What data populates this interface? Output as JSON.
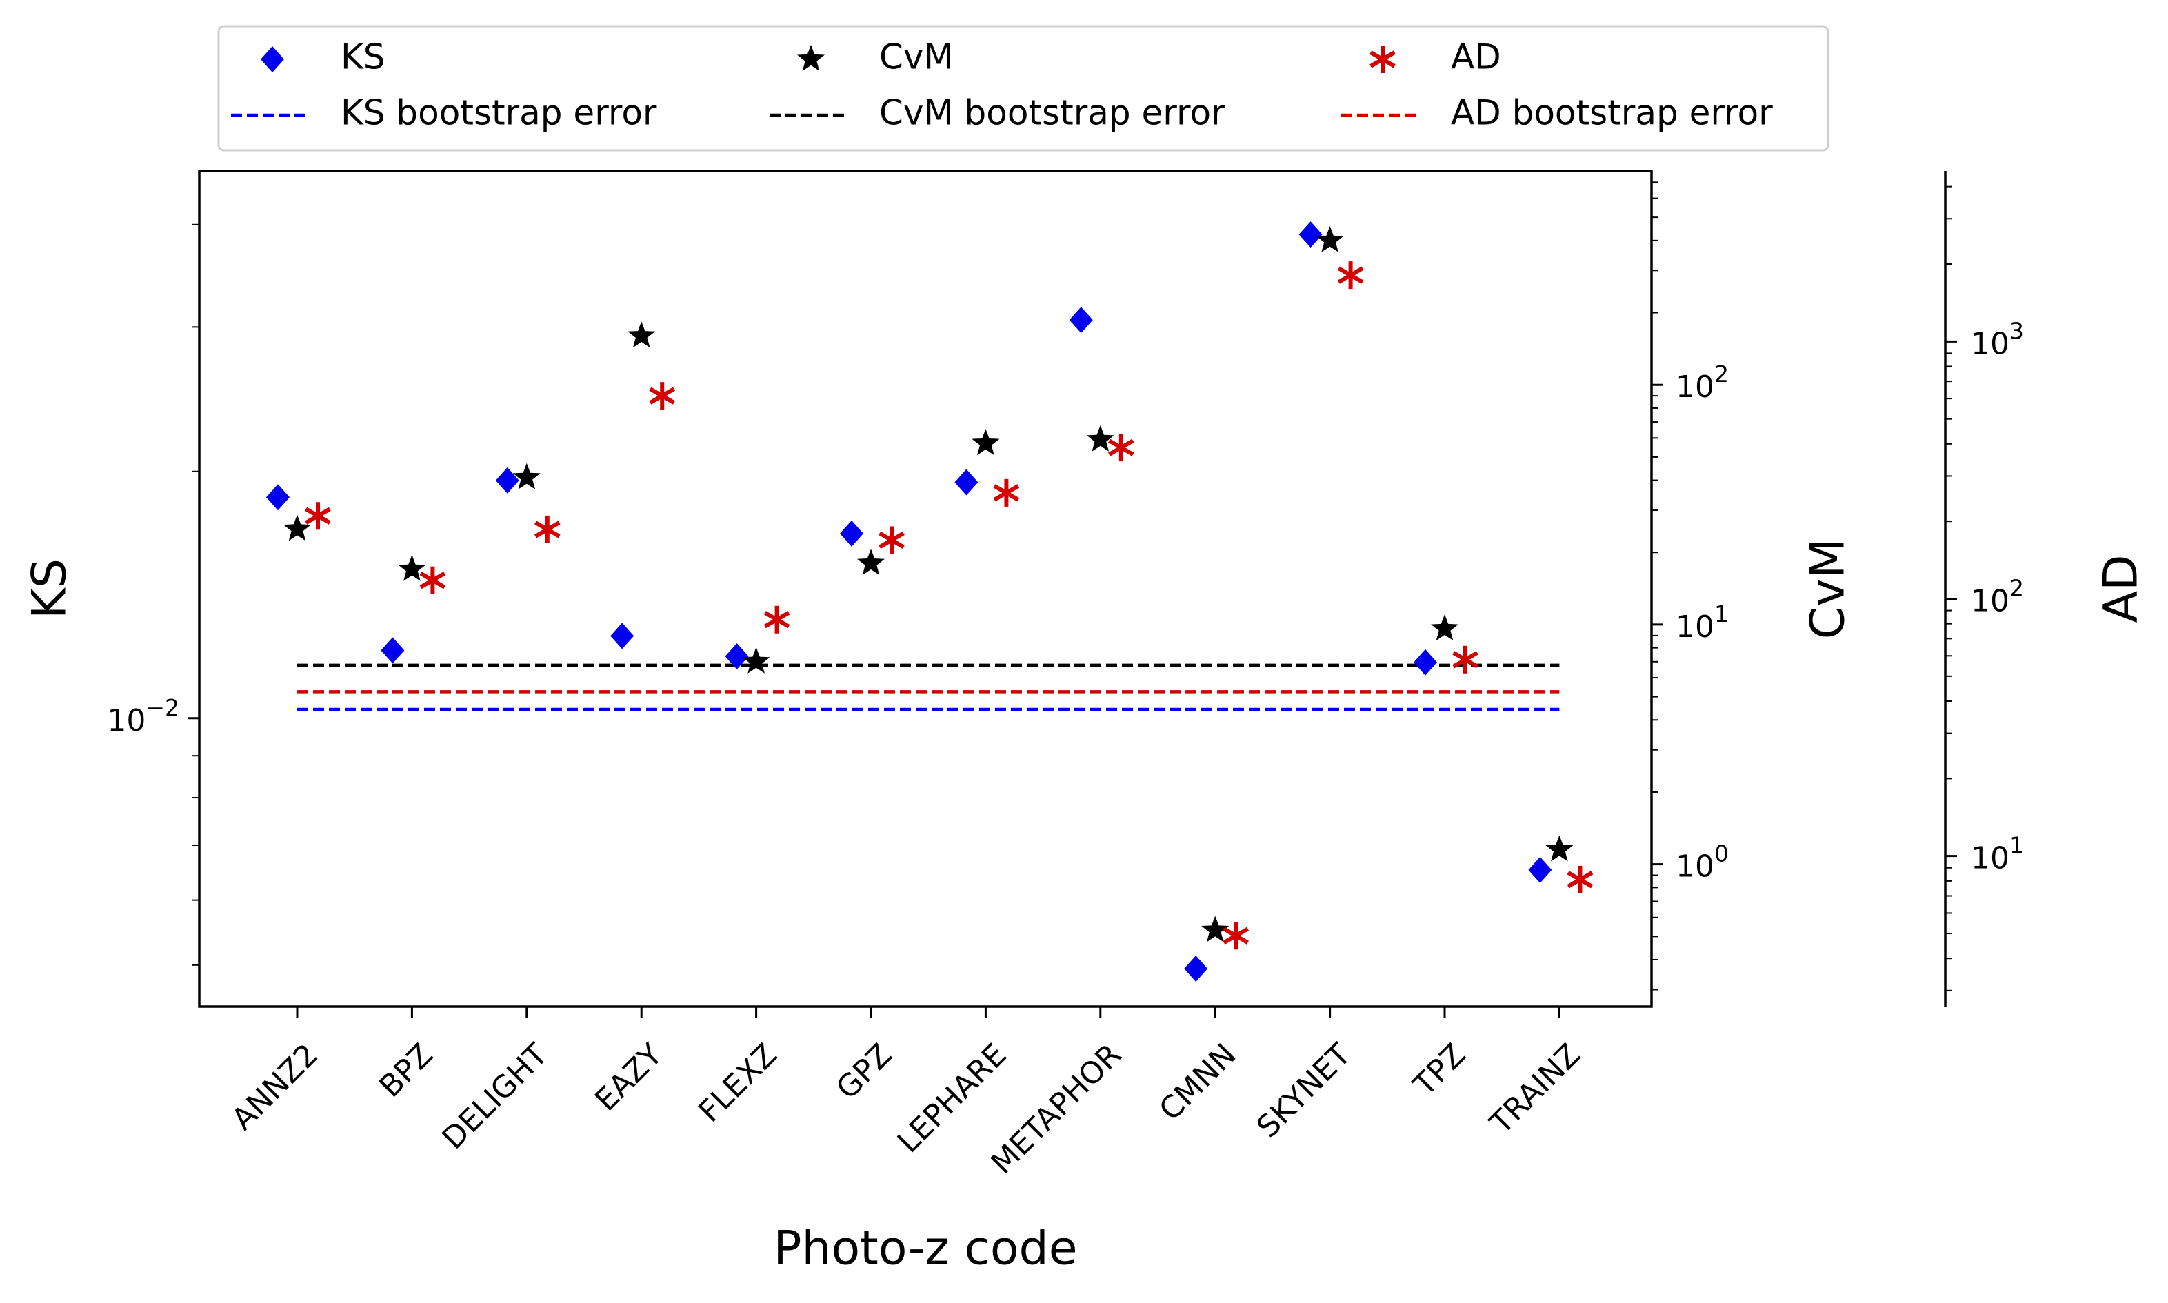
{
  "chart_data": {
    "type": "scatter",
    "xlabel": "Photo-z code",
    "categories": [
      "ANNZ2",
      "BPZ",
      "DELIGHT",
      "EAZY",
      "FLEXZ",
      "GPZ",
      "LEPHARE",
      "METAPHOR",
      "CMNN",
      "SKYNET",
      "TPZ",
      "TRAINZ"
    ],
    "axes": {
      "ks": {
        "label": "KS",
        "scale": "log",
        "range": [
          0.00445,
          0.0465
        ],
        "ticks": [
          {
            "value": 0.01,
            "base": "10",
            "exp": "−2"
          }
        ]
      },
      "cvm": {
        "label": "CvM",
        "scale": "log",
        "range": [
          0.255,
          780
        ],
        "ticks": [
          {
            "value": 1,
            "base": "10",
            "exp": "0"
          },
          {
            "value": 10,
            "base": "10",
            "exp": "1"
          },
          {
            "value": 100,
            "base": "10",
            "exp": "2"
          }
        ]
      },
      "ad": {
        "label": "AD",
        "scale": "log",
        "range": [
          2.6,
          4600
        ],
        "ticks": [
          {
            "value": 10,
            "base": "10",
            "exp": "1"
          },
          {
            "value": 100,
            "base": "10",
            "exp": "2"
          },
          {
            "value": 1000,
            "base": "10",
            "exp": "3"
          }
        ]
      }
    },
    "series": [
      {
        "name": "KS",
        "axis": "ks",
        "marker": "diamond",
        "color": "#0000ee",
        "values": [
          0.0186,
          0.0121,
          0.0195,
          0.0126,
          0.0119,
          0.0168,
          0.0194,
          0.0306,
          0.00495,
          0.0389,
          0.0117,
          0.00653
        ]
      },
      {
        "name": "CvM",
        "axis": "cvm",
        "marker": "star",
        "color": "#000000",
        "values": [
          25,
          17,
          41,
          160,
          7,
          18,
          57,
          59,
          0.53,
          400,
          9.6,
          1.15
        ]
      },
      {
        "name": "AD",
        "axis": "ad",
        "marker": "asterisk",
        "color": "#d40000",
        "values": [
          210,
          118,
          186,
          615,
          83,
          169,
          258,
          387,
          4.9,
          1810,
          58,
          8.1
        ]
      }
    ],
    "bootstrap_errors": [
      {
        "name": "KS bootstrap error",
        "axis": "ks",
        "value": 0.01025,
        "color": "#0000ee",
        "style": "dashed"
      },
      {
        "name": "CvM bootstrap error",
        "axis": "cvm",
        "value": 6.77,
        "color": "#000000",
        "style": "dashed"
      },
      {
        "name": "AD bootstrap error",
        "axis": "ad",
        "value": 43.5,
        "color": "#d40000",
        "style": "dashed"
      }
    ],
    "legend": {
      "placement": "top",
      "entries": [
        {
          "label": "KS",
          "marker": "diamond",
          "color": "#0000ee"
        },
        {
          "label": "CvM",
          "marker": "star",
          "color": "#000000"
        },
        {
          "label": "AD",
          "marker": "asterisk",
          "color": "#d40000"
        },
        {
          "label": "KS bootstrap error",
          "marker": "dashed",
          "color": "#0000ee"
        },
        {
          "label": "CvM bootstrap error",
          "marker": "dashed",
          "color": "#000000"
        },
        {
          "label": "AD bootstrap error",
          "marker": "dashed",
          "color": "#d40000"
        }
      ]
    }
  }
}
